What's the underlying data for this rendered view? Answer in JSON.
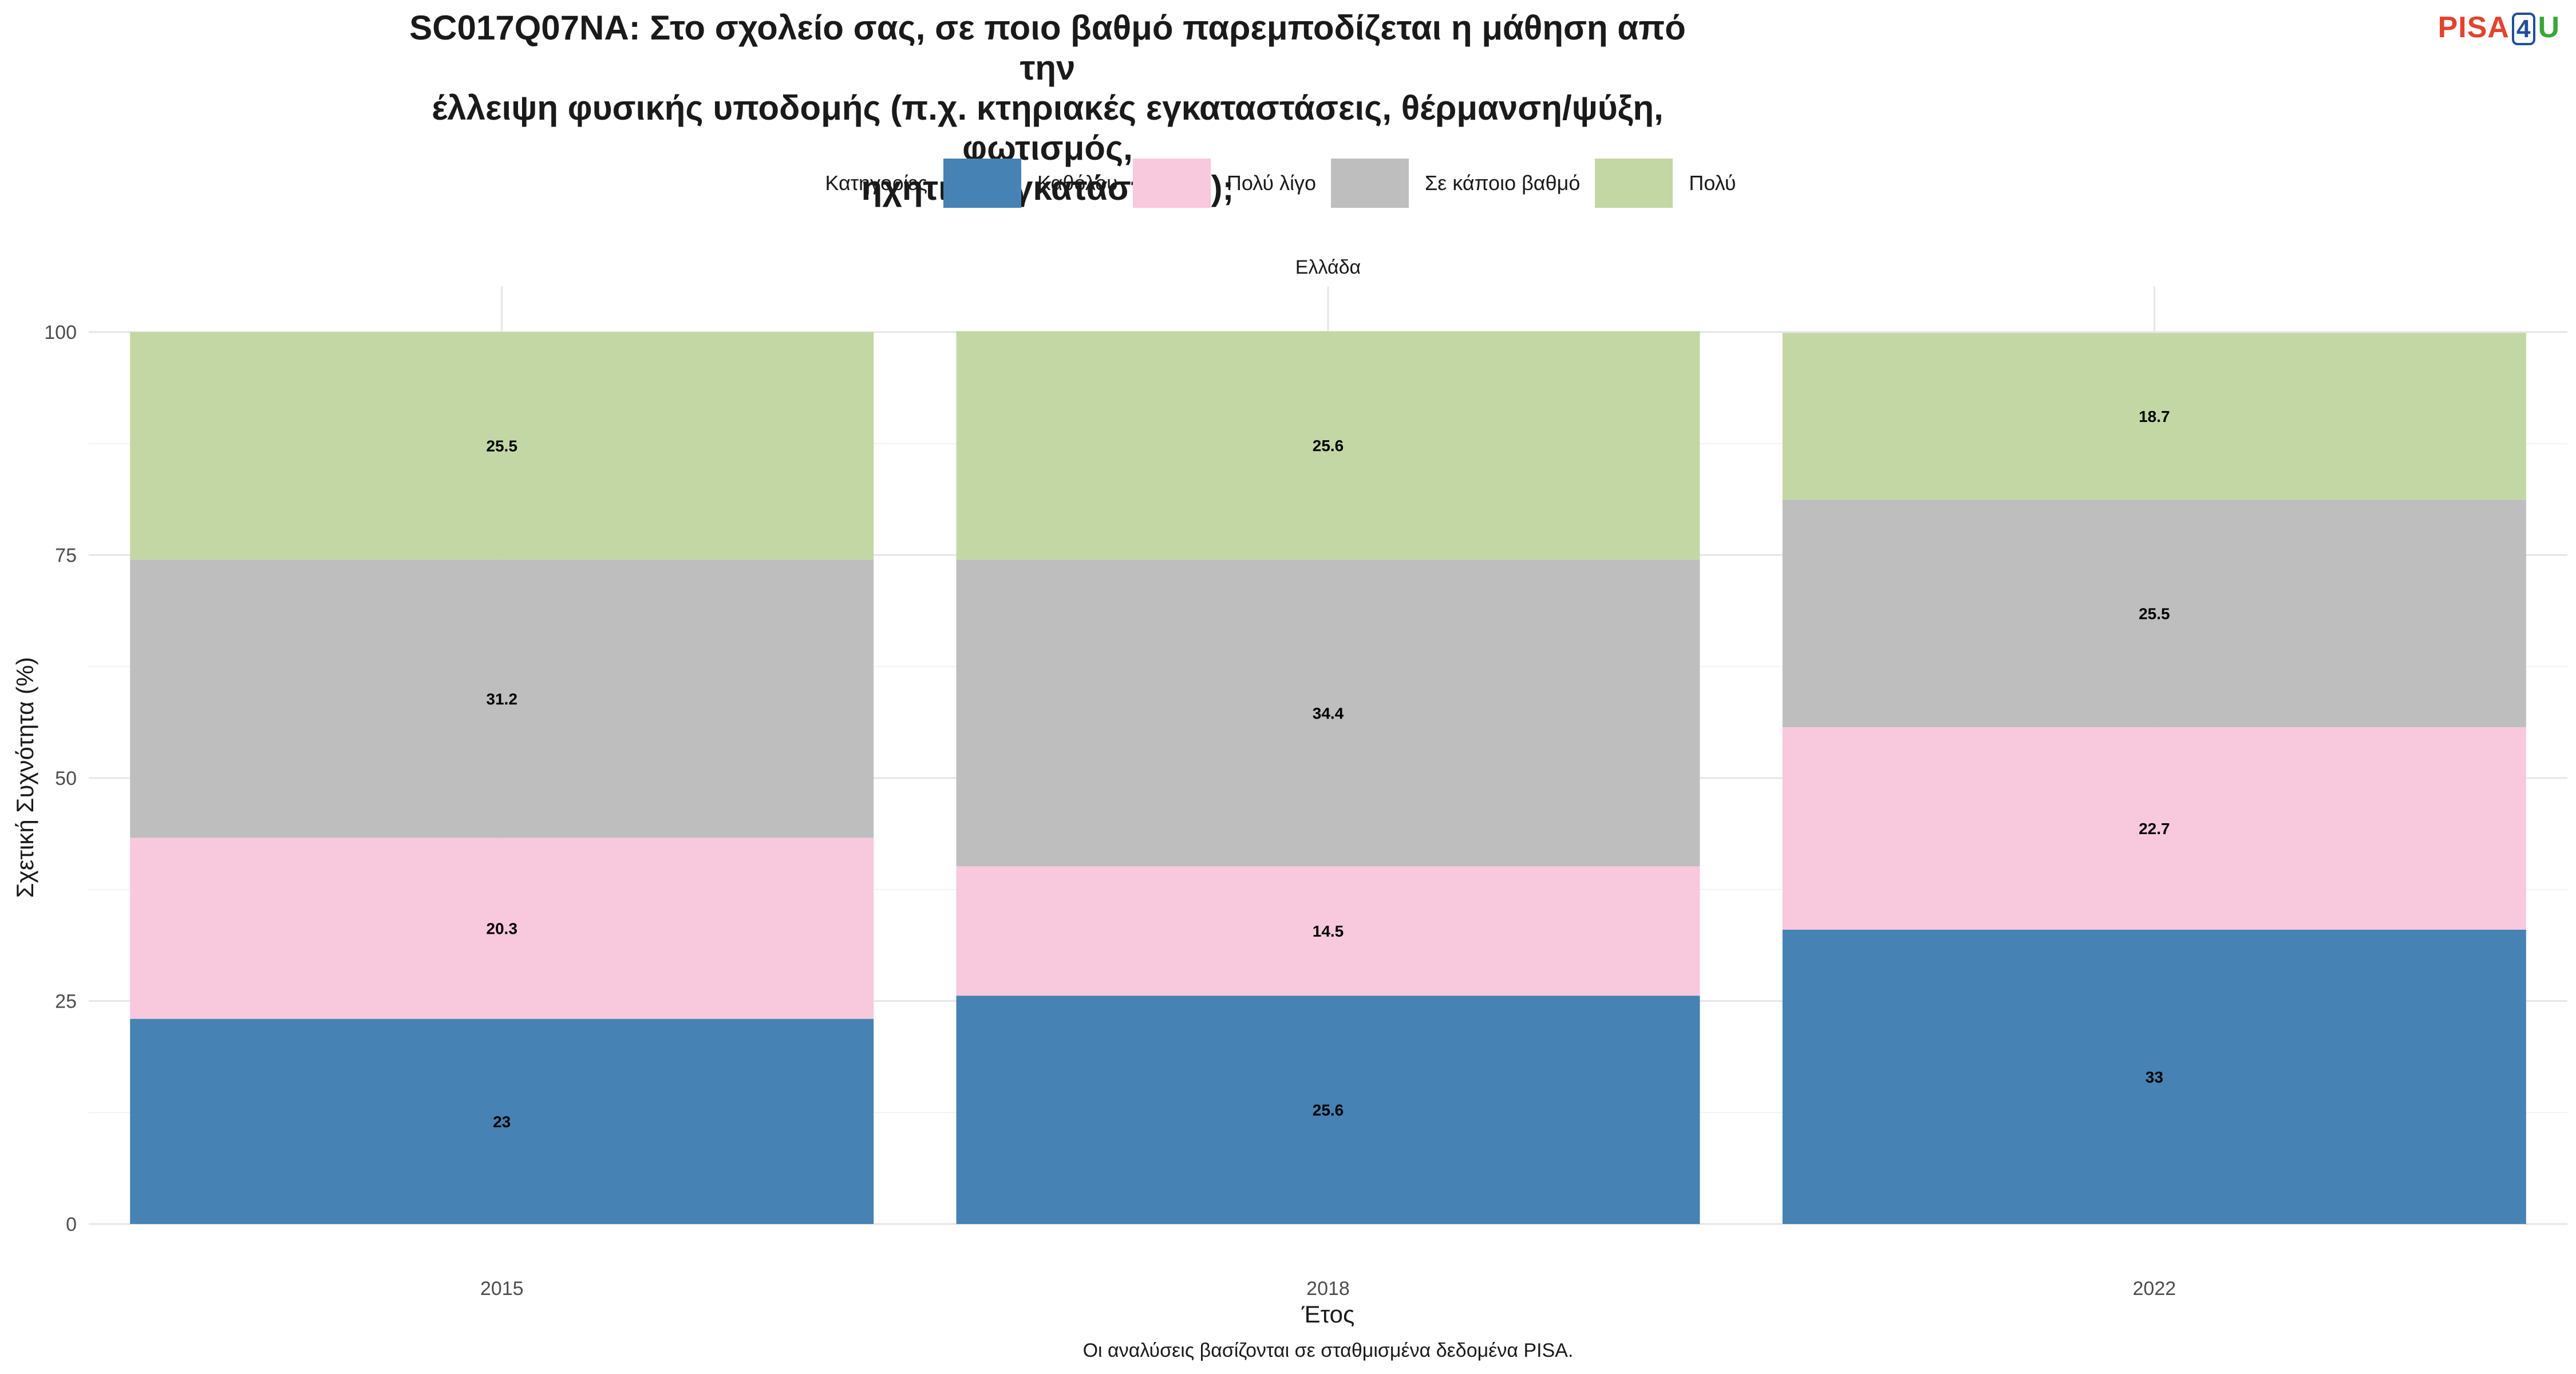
{
  "title_lines": [
    "SC017Q07NA: Στο σχολείο σας, σε ποιο βαθμό παρεμποδίζεται η μάθηση από την",
    "έλλειψη φυσικής υποδομής (π.χ. κτηριακές εγκαταστάσεις, θέρμανση/ψύξη, φωτισμός,",
    "ηχητική εγκατάσταση);"
  ],
  "logo": {
    "p": "PISA",
    "four": "4",
    "u": "U"
  },
  "legend": {
    "title": "Κατηγορίες",
    "placement": "top"
  },
  "facet": "Ελλάδα",
  "caption": "Οι αναλύσεις βασίζονται σε σταθμισμένα δεδομένα PISA.",
  "chart_data": {
    "type": "bar",
    "stacked": true,
    "categories": [
      "2015",
      "2018",
      "2022"
    ],
    "series": [
      {
        "name": "Καθόλου",
        "color": "#4682b4",
        "values": [
          23,
          25.6,
          33
        ]
      },
      {
        "name": "Πολύ λίγο",
        "color": "#f8c8dc",
        "values": [
          20.3,
          14.5,
          22.7
        ]
      },
      {
        "name": "Σε κάποιο βαθμό",
        "color": "#bebebe",
        "values": [
          31.2,
          34.4,
          25.5
        ]
      },
      {
        "name": "Πολύ",
        "color": "#c3d7a4",
        "values": [
          25.5,
          25.6,
          18.7
        ]
      }
    ],
    "xlabel": "Έτος",
    "ylabel": "Σχετική Συχνότητα (%)",
    "ylim": [
      0,
      100
    ],
    "yticks": [
      0,
      25,
      50,
      75,
      100
    ],
    "grid": true
  }
}
